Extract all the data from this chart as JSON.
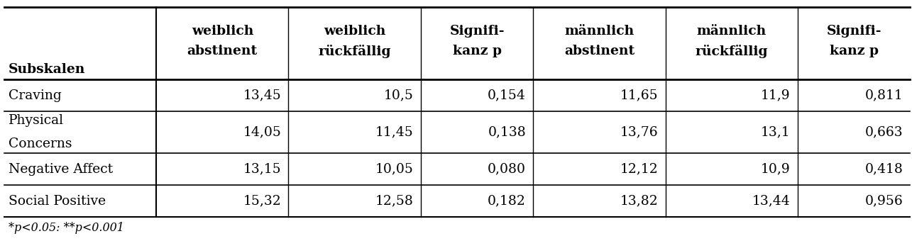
{
  "col_headers": [
    [
      "",
      "weiblich\nabstinent",
      "weiblich\nrückfällig",
      "Signifi-\nkanz p",
      "männlich\nabstinent",
      "männlich\nrückfällig",
      "Signifi-\nkanz p"
    ],
    [
      "Subskalen",
      "",
      "",
      "",
      "",
      "",
      ""
    ]
  ],
  "rows": [
    [
      "Craving",
      "13,45",
      "10,5",
      "0,154",
      "11,65",
      "11,9",
      "0,811"
    ],
    [
      "Physical\nConcerns",
      "14,05",
      "11,45",
      "0,138",
      "13,76",
      "13,1",
      "0,663"
    ],
    [
      "Negative Affect",
      "13,15",
      "10,05",
      "0,080",
      "12,12",
      "10,9",
      "0,418"
    ],
    [
      "Social Positive",
      "15,32",
      "12,58",
      "0,182",
      "13,82",
      "13,44",
      "0,956"
    ]
  ],
  "footnote": "*p<0.05: **p<0.001",
  "col_widths_ratio": [
    1.55,
    1.35,
    1.35,
    1.15,
    1.35,
    1.35,
    1.15
  ],
  "background_color": "#ffffff",
  "line_color": "#000000",
  "font_size": 13.5,
  "bold_font_size": 13.5,
  "footnote_font_size": 11.5,
  "fig_width": 12.85,
  "fig_height": 3.4,
  "dpi": 100
}
